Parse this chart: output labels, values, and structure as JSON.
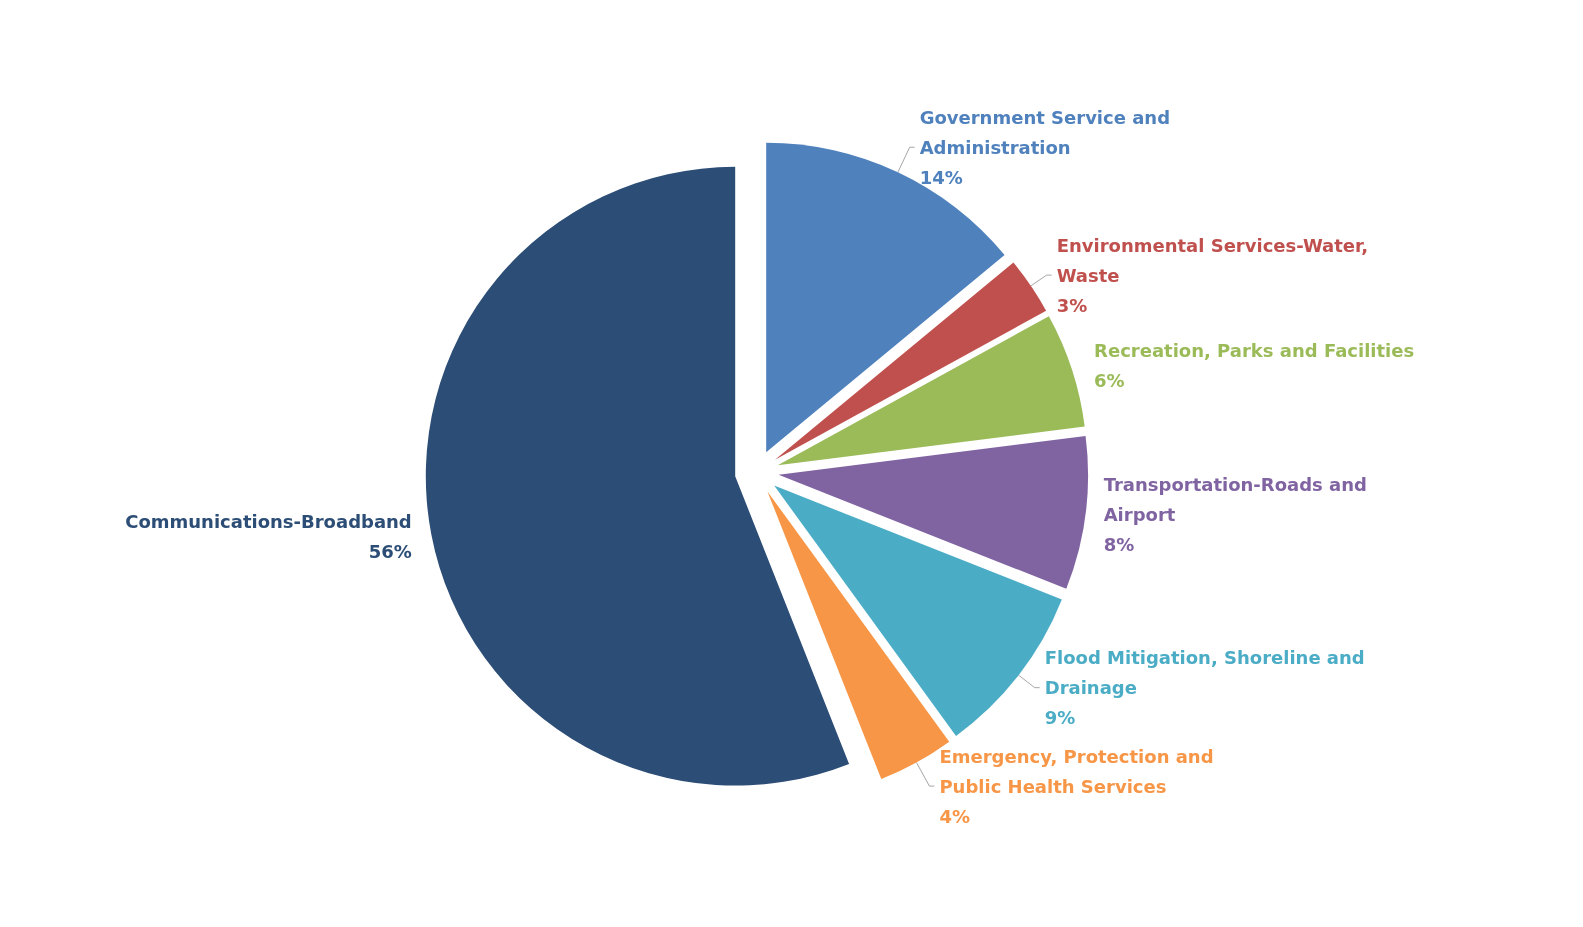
{
  "chart_data": {
    "type": "pie",
    "categories": [
      "Government Service and Administration",
      "Environmental Services-Water, Waste",
      "Recreation, Parks and Facilities",
      "Transportation-Roads and Airport",
      "Flood Mitigation, Shoreline and Drainage",
      "Emergency, Protection and Public Health Services",
      "Communications-Broadband"
    ],
    "values": [
      14,
      3,
      6,
      8,
      9,
      4,
      56
    ],
    "colors": [
      "#4f81bd",
      "#c0504d",
      "#9bbb59",
      "#8064a2",
      "#4bacc6",
      "#f79646",
      "#2c4d75"
    ],
    "value_labels": [
      "14%",
      "3%",
      "6%",
      "8%",
      "9%",
      "4%",
      "56%"
    ],
    "legend": false
  }
}
